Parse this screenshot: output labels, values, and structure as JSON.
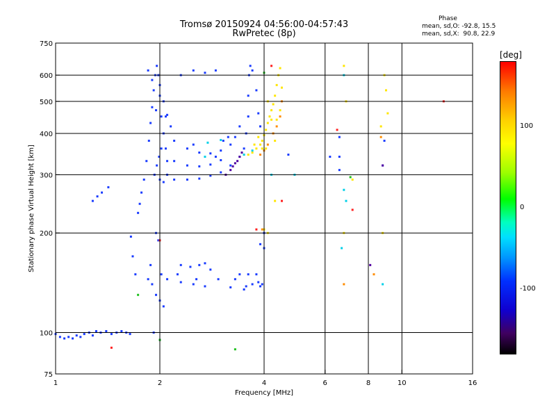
{
  "chart_data": {
    "type": "scatter",
    "title": "Tromsø 20150924 04:56:00-04:57:43",
    "subtitle": "RwPretec (8p)",
    "xlabel": "Frequency [MHz]",
    "ylabel": "Stationary phase Virtual Height [km]",
    "xscale": "log",
    "yscale": "log",
    "xlim": [
      1,
      16
    ],
    "ylim": [
      75,
      750
    ],
    "xticks": [
      1,
      2,
      4,
      6,
      8,
      10,
      16
    ],
    "xtick_labels": [
      "1",
      "2",
      "4",
      "6",
      "8",
      "10",
      "16"
    ],
    "yticks": [
      75,
      100,
      200,
      300,
      400,
      500,
      600,
      750
    ],
    "ytick_labels": [
      "75",
      "100",
      "200",
      "300",
      "400",
      "500",
      "600",
      "750"
    ],
    "grid": true,
    "stats": {
      "heading": "Phase",
      "o_mode": "mean, sd,O: -92.8, 15.5",
      "x_mode": "mean, sd,X:  90.8, 22.9"
    },
    "colorbar": {
      "unit": "[deg]",
      "ticks": [
        "100",
        "0",
        "-100"
      ],
      "tick_values": [
        100,
        0,
        -100
      ],
      "range": [
        -180,
        180
      ]
    },
    "series": [
      {
        "mode": "O",
        "color": "#1a3cff",
        "points": [
          [
            1.0,
            99
          ],
          [
            1.03,
            97
          ],
          [
            1.06,
            96
          ],
          [
            1.09,
            97
          ],
          [
            1.12,
            96
          ],
          [
            1.15,
            98
          ],
          [
            1.18,
            97
          ],
          [
            1.21,
            99
          ],
          [
            1.25,
            100
          ],
          [
            1.28,
            98
          ],
          [
            1.31,
            101
          ],
          [
            1.35,
            100
          ],
          [
            1.4,
            101
          ],
          [
            1.45,
            99
          ],
          [
            1.5,
            100
          ],
          [
            1.55,
            101
          ],
          [
            1.6,
            100
          ],
          [
            1.64,
            99
          ],
          [
            1.28,
            250
          ],
          [
            1.32,
            258
          ],
          [
            1.36,
            265
          ],
          [
            1.42,
            275
          ],
          [
            1.65,
            195
          ],
          [
            1.67,
            170
          ],
          [
            1.7,
            150
          ],
          [
            1.73,
            230
          ],
          [
            1.75,
            245
          ],
          [
            1.77,
            265
          ],
          [
            1.8,
            290
          ],
          [
            1.83,
            330
          ],
          [
            1.86,
            380
          ],
          [
            1.88,
            430
          ],
          [
            1.9,
            480
          ],
          [
            1.92,
            540
          ],
          [
            1.94,
            600
          ],
          [
            1.96,
            640
          ],
          [
            1.98,
            600
          ],
          [
            2.0,
            520
          ],
          [
            2.02,
            450
          ],
          [
            2.05,
            400
          ],
          [
            2.08,
            360
          ],
          [
            2.1,
            330
          ],
          [
            1.93,
            300
          ],
          [
            1.96,
            320
          ],
          [
            1.99,
            340
          ],
          [
            2.02,
            360
          ],
          [
            2.0,
            290
          ],
          [
            2.05,
            285
          ],
          [
            2.1,
            300
          ],
          [
            1.95,
            200
          ],
          [
            1.98,
            190
          ],
          [
            2.02,
            150
          ],
          [
            1.85,
            145
          ],
          [
            1.9,
            140
          ],
          [
            1.95,
            130
          ],
          [
            2.0,
            125
          ],
          [
            2.05,
            120
          ],
          [
            1.88,
            160
          ],
          [
            1.92,
            100
          ],
          [
            2.0,
            95
          ],
          [
            2.2,
            290
          ],
          [
            2.4,
            290
          ],
          [
            2.6,
            292
          ],
          [
            2.8,
            298
          ],
          [
            3.0,
            305
          ],
          [
            3.2,
            320
          ],
          [
            3.4,
            340
          ],
          [
            3.5,
            360
          ],
          [
            3.55,
            400
          ],
          [
            3.6,
            450
          ],
          [
            3.6,
            520
          ],
          [
            3.62,
            600
          ],
          [
            3.65,
            640
          ],
          [
            3.7,
            620
          ],
          [
            3.8,
            540
          ],
          [
            3.85,
            460
          ],
          [
            3.9,
            420
          ],
          [
            2.2,
            380
          ],
          [
            2.4,
            360
          ],
          [
            2.6,
            350
          ],
          [
            2.8,
            348
          ],
          [
            3.0,
            355
          ],
          [
            3.2,
            370
          ],
          [
            3.3,
            390
          ],
          [
            3.4,
            420
          ],
          [
            2.2,
            330
          ],
          [
            2.4,
            320
          ],
          [
            2.6,
            318
          ],
          [
            2.8,
            322
          ],
          [
            3.0,
            332
          ],
          [
            2.5,
            370
          ],
          [
            2.9,
            340
          ],
          [
            2.3,
            160
          ],
          [
            2.45,
            158
          ],
          [
            2.6,
            160
          ],
          [
            2.7,
            162
          ],
          [
            2.8,
            155
          ],
          [
            3.4,
            150
          ],
          [
            3.6,
            150
          ],
          [
            3.8,
            150
          ],
          [
            3.95,
            140
          ],
          [
            2.1,
            145
          ],
          [
            2.3,
            142
          ],
          [
            2.5,
            140
          ],
          [
            2.7,
            138
          ],
          [
            3.2,
            137
          ],
          [
            3.5,
            135
          ],
          [
            3.7,
            140
          ],
          [
            3.9,
            138
          ],
          [
            2.25,
            150
          ],
          [
            2.55,
            145
          ],
          [
            2.95,
            145
          ],
          [
            3.3,
            145
          ],
          [
            3.55,
            138
          ],
          [
            3.85,
            142
          ],
          [
            2.3,
            600
          ],
          [
            2.5,
            620
          ],
          [
            2.7,
            610
          ],
          [
            2.9,
            620
          ],
          [
            3.05,
            380
          ],
          [
            3.15,
            390
          ],
          [
            2.1,
            455
          ],
          [
            2.15,
            420
          ],
          [
            1.85,
            620
          ],
          [
            1.9,
            580
          ],
          [
            2.0,
            560
          ],
          [
            2.05,
            500
          ],
          [
            1.95,
            470
          ],
          [
            2.08,
            450
          ],
          [
            4.0,
            180
          ],
          [
            4.0,
            200
          ],
          [
            3.9,
            185
          ],
          [
            4.7,
            345
          ],
          [
            6.6,
            390
          ],
          [
            6.6,
            340
          ],
          [
            6.6,
            310
          ],
          [
            8.8,
            320
          ],
          [
            8.9,
            380
          ],
          [
            6.2,
            340
          ]
        ]
      },
      {
        "mode": "X",
        "color": "#ffe600",
        "points": [
          [
            3.5,
            345
          ],
          [
            3.6,
            345
          ],
          [
            3.7,
            350
          ],
          [
            3.8,
            360
          ],
          [
            3.9,
            370
          ],
          [
            3.95,
            380
          ],
          [
            4.0,
            395
          ],
          [
            4.05,
            410
          ],
          [
            4.1,
            430
          ],
          [
            4.15,
            450
          ],
          [
            4.2,
            470
          ],
          [
            4.25,
            490
          ],
          [
            4.3,
            520
          ],
          [
            4.35,
            560
          ],
          [
            4.4,
            600
          ],
          [
            4.45,
            630
          ],
          [
            4.5,
            550
          ],
          [
            3.85,
            390
          ],
          [
            3.95,
            360
          ],
          [
            4.05,
            360
          ],
          [
            4.1,
            500
          ],
          [
            4.2,
            440
          ],
          [
            4.3,
            380
          ],
          [
            3.75,
            370
          ],
          [
            4.0,
            205
          ],
          [
            4.1,
            200
          ],
          [
            4.35,
            440
          ],
          [
            4.45,
            470
          ],
          [
            6.8,
            640
          ],
          [
            6.9,
            500
          ],
          [
            6.8,
            200
          ],
          [
            8.9,
            600
          ],
          [
            9.0,
            540
          ],
          [
            9.1,
            460
          ],
          [
            8.7,
            420
          ],
          [
            8.8,
            200
          ],
          [
            7.2,
            290
          ],
          [
            4.3,
            250
          ]
        ]
      },
      {
        "mode": "X-low",
        "color": "#ff8c00",
        "points": [
          [
            3.9,
            345
          ],
          [
            4.0,
            355
          ],
          [
            4.1,
            370
          ],
          [
            4.25,
            400
          ],
          [
            4.35,
            420
          ],
          [
            4.45,
            450
          ],
          [
            3.95,
            205
          ],
          [
            8.7,
            390
          ],
          [
            6.8,
            140
          ],
          [
            8.3,
            150
          ],
          [
            4.5,
            500
          ]
        ]
      },
      {
        "mode": "O-deep",
        "color": "#5000a0",
        "points": [
          [
            3.2,
            310
          ],
          [
            3.3,
            325
          ],
          [
            3.4,
            340
          ],
          [
            3.45,
            350
          ],
          [
            3.1,
            300
          ],
          [
            3.35,
            330
          ],
          [
            3.25,
            318
          ],
          [
            8.8,
            320
          ],
          [
            8.1,
            160
          ]
        ]
      },
      {
        "mode": "O-cyan",
        "color": "#00d0e8",
        "points": [
          [
            6.8,
            600
          ],
          [
            6.8,
            270
          ],
          [
            6.7,
            180
          ],
          [
            8.8,
            140
          ],
          [
            3.5,
            345
          ],
          [
            3.7,
            355
          ],
          [
            2.7,
            340
          ],
          [
            4.2,
            300
          ],
          [
            4.9,
            300
          ],
          [
            6.9,
            250
          ],
          [
            2.75,
            375
          ],
          [
            3.0,
            382
          ]
        ]
      },
      {
        "mode": "misc",
        "color": "#ff2020",
        "points": [
          [
            1.45,
            90
          ],
          [
            2.0,
            190
          ],
          [
            3.8,
            205
          ],
          [
            13.2,
            500
          ],
          [
            6.5,
            410
          ],
          [
            7.2,
            235
          ],
          [
            4.5,
            250
          ],
          [
            4.2,
            640
          ]
        ]
      },
      {
        "mode": "misc-green",
        "color": "#20c020",
        "points": [
          [
            1.73,
            130
          ],
          [
            3.3,
            89
          ],
          [
            4.0,
            610
          ],
          [
            7.1,
            295
          ],
          [
            2.0,
            95
          ]
        ]
      }
    ]
  }
}
